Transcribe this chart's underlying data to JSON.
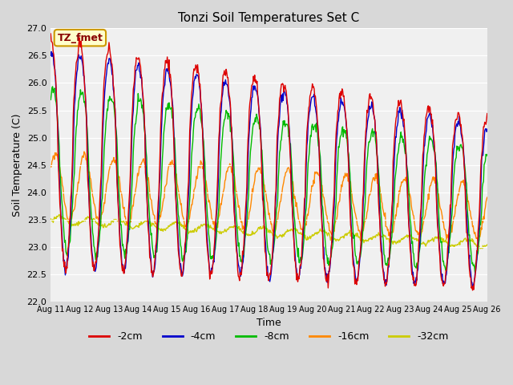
{
  "title": "Tonzi Soil Temperatures Set C",
  "xlabel": "Time",
  "ylabel": "Soil Temperature (C)",
  "ylim": [
    22.0,
    27.0
  ],
  "yticks": [
    22.0,
    22.5,
    23.0,
    23.5,
    24.0,
    24.5,
    25.0,
    25.5,
    26.0,
    26.5,
    27.0
  ],
  "x_labels": [
    "Aug 11",
    "Aug 12",
    "Aug 13",
    "Aug 14",
    "Aug 15",
    "Aug 16",
    "Aug 17",
    "Aug 18",
    "Aug 19",
    "Aug 20",
    "Aug 21",
    "Aug 22",
    "Aug 23",
    "Aug 24",
    "Aug 25",
    "Aug 26"
  ],
  "colors": {
    "-2cm": "#dd0000",
    "-4cm": "#0000cc",
    "-8cm": "#00bb00",
    "-16cm": "#ff8800",
    "-32cm": "#cccc00"
  },
  "annotation_text": "TZ_fmet",
  "annotation_bg": "#ffffcc",
  "annotation_border": "#cc9900",
  "plot_bg": "#f0f0f0",
  "fig_bg": "#d8d8d8"
}
